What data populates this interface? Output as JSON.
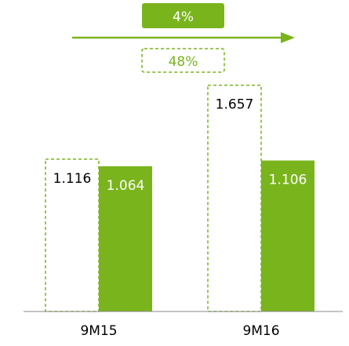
{
  "chart_data": {
    "type": "bar",
    "categories": [
      "9M15",
      "9M16"
    ],
    "series": [
      {
        "values": [
          1.116,
          1.657
        ],
        "style": "dashed-outline",
        "value_labels": [
          "1.116",
          "1.657"
        ]
      },
      {
        "values": [
          1.064,
          1.106
        ],
        "style": "solid-fill",
        "value_labels": [
          "1.064",
          "1.106"
        ]
      }
    ],
    "annotations": {
      "solid_growth": "4%",
      "outline_growth": "48%"
    },
    "title": "",
    "xlabel": "",
    "ylabel": "",
    "ylim": [
      0,
      2.0
    ],
    "grid": false,
    "legend": "none"
  },
  "colors": {
    "accent": "#7ab41d",
    "text_dark": "#000000",
    "text_light": "#ffffff",
    "axis": "#888888"
  }
}
